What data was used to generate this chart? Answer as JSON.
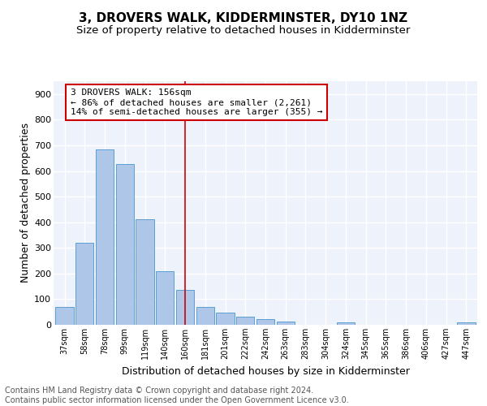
{
  "title1": "3, DROVERS WALK, KIDDERMINSTER, DY10 1NZ",
  "title2": "Size of property relative to detached houses in Kidderminster",
  "xlabel": "Distribution of detached houses by size in Kidderminster",
  "ylabel": "Number of detached properties",
  "categories": [
    "37sqm",
    "58sqm",
    "78sqm",
    "99sqm",
    "119sqm",
    "140sqm",
    "160sqm",
    "181sqm",
    "201sqm",
    "222sqm",
    "242sqm",
    "263sqm",
    "283sqm",
    "304sqm",
    "324sqm",
    "345sqm",
    "365sqm",
    "386sqm",
    "406sqm",
    "427sqm",
    "447sqm"
  ],
  "values": [
    70,
    320,
    685,
    628,
    413,
    208,
    136,
    70,
    48,
    33,
    22,
    12,
    0,
    0,
    8,
    0,
    0,
    0,
    0,
    0,
    8
  ],
  "bar_color": "#aec6e8",
  "bar_edge_color": "#5a9fd4",
  "vline_x_index": 6,
  "vline_color": "#cc0000",
  "annotation_text": "3 DROVERS WALK: 156sqm\n← 86% of detached houses are smaller (2,261)\n14% of semi-detached houses are larger (355) →",
  "annotation_box_color": "#ffffff",
  "annotation_box_edge_color": "#cc0000",
  "ylim": [
    0,
    950
  ],
  "yticks": [
    0,
    100,
    200,
    300,
    400,
    500,
    600,
    700,
    800,
    900
  ],
  "footer_text": "Contains HM Land Registry data © Crown copyright and database right 2024.\nContains public sector information licensed under the Open Government Licence v3.0.",
  "background_color": "#eef2fa",
  "grid_color": "#ffffff",
  "title1_fontsize": 11,
  "title2_fontsize": 9.5,
  "xlabel_fontsize": 9,
  "ylabel_fontsize": 9,
  "footer_fontsize": 7,
  "tick_fontsize": 8,
  "xtick_fontsize": 7
}
